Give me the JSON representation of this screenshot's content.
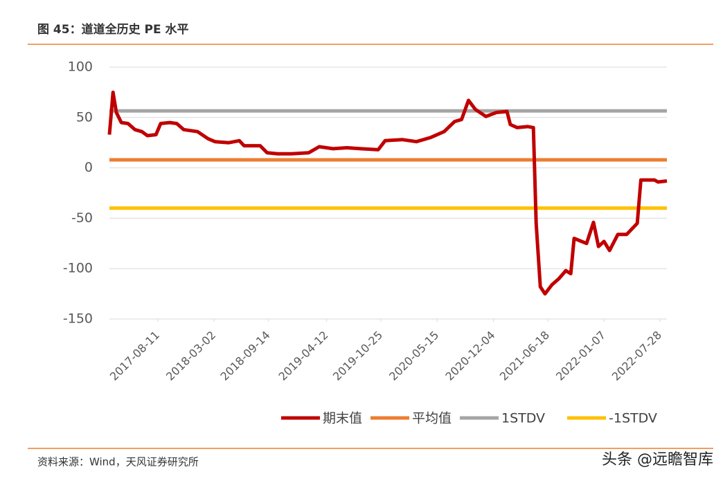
{
  "header": {
    "title": "图 45：道道全历史 PE 水平"
  },
  "chart_data": {
    "type": "line",
    "xlim": [
      "2017-02-17",
      "2022-08-22"
    ],
    "xticks": [
      "2017-08-11",
      "2018-03-02",
      "2018-09-14",
      "2019-04-12",
      "2019-10-25",
      "2020-05-15",
      "2020-12-04",
      "2021-06-18",
      "2022-01-07",
      "2022-07-28"
    ],
    "ylim": [
      -150,
      100
    ],
    "yticks": [
      100,
      50,
      0,
      -50,
      -100,
      -150
    ],
    "grid": true,
    "series": [
      {
        "name": "期末值",
        "color": "#c00000",
        "x": [
          "2017-02-17",
          "2017-03-02",
          "2017-03-14",
          "2017-04-01",
          "2017-04-25",
          "2017-05-20",
          "2017-06-14",
          "2017-07-04",
          "2017-08-04",
          "2017-08-21",
          "2017-09-23",
          "2017-10-18",
          "2017-11-12",
          "2018-01-01",
          "2018-02-08",
          "2018-03-05",
          "2018-04-24",
          "2018-06-01",
          "2018-06-18",
          "2018-08-15",
          "2018-09-09",
          "2018-10-17",
          "2018-12-06",
          "2019-02-06",
          "2019-03-16",
          "2019-05-05",
          "2019-06-24",
          "2019-08-13",
          "2019-10-15",
          "2019-11-09",
          "2020-01-11",
          "2020-03-01",
          "2020-04-20",
          "2020-06-09",
          "2020-07-17",
          "2020-08-11",
          "2020-09-05",
          "2020-09-30",
          "2020-11-07",
          "2020-12-15",
          "2021-01-22",
          "2021-02-03",
          "2021-02-28",
          "2021-04-07",
          "2021-04-27",
          "2021-05-07",
          "2021-05-22",
          "2021-06-08",
          "2021-07-03",
          "2021-07-28",
          "2021-08-22",
          "2021-09-09",
          "2021-09-21",
          "2021-11-05",
          "2021-11-30",
          "2021-12-18",
          "2022-01-07",
          "2022-01-27",
          "2022-02-26",
          "2022-03-30",
          "2022-05-07",
          "2022-05-20",
          "2022-07-08",
          "2022-07-21",
          "2022-08-22"
        ],
        "values": [
          33,
          75,
          55,
          45,
          44,
          38,
          36,
          32,
          33,
          44,
          45,
          44,
          38,
          36,
          29,
          26,
          25,
          27,
          22,
          22,
          15,
          14,
          14,
          15,
          21,
          19,
          20,
          19,
          18,
          27,
          28,
          26,
          30,
          36,
          46,
          48,
          67,
          58,
          51,
          55,
          56,
          43,
          40,
          41,
          40,
          -55,
          -118,
          -125,
          -116,
          -110,
          -102,
          -105,
          -70,
          -75,
          -54,
          -78,
          -73,
          -82,
          -66,
          -66,
          -55,
          -12,
          -12,
          -14,
          -13
        ]
      },
      {
        "name": "平均值",
        "color": "#ed7d31",
        "x": [
          "2017-02-17",
          "2022-08-22"
        ],
        "values": [
          8,
          8
        ]
      },
      {
        "name": "1STDV",
        "color": "#a5a5a5",
        "x": [
          "2017-02-17",
          "2022-08-22"
        ],
        "values": [
          56.5,
          56.5
        ]
      },
      {
        "name": "-1STDV",
        "color": "#ffc000",
        "x": [
          "2017-02-17",
          "2022-08-22"
        ],
        "values": [
          -40,
          -40
        ]
      }
    ]
  },
  "footer": {
    "source": "资料来源：Wind，天风证券研究所",
    "watermark": "头条 @远瞻智库"
  }
}
